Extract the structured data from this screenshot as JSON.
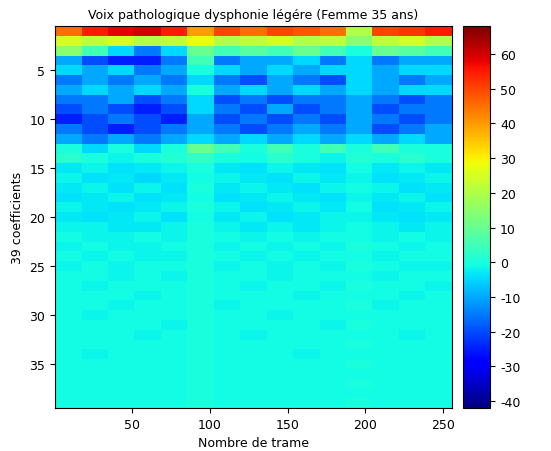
{
  "chart_data": {
    "type": "heatmap",
    "title": "Voix pathologique dysphonie légére (Femme 35 ans)",
    "x_label": "Nombre de trame",
    "y_label": "39 coefficients",
    "color": "jet",
    "x_edges": [
      0.5,
      17.5,
      34.5,
      51.5,
      68.5,
      85.5,
      102.5,
      119.5,
      136.5,
      153.5,
      170.5,
      187.5,
      204.5,
      221.5,
      238.5,
      255.5
    ],
    "y_edges": [
      0.5,
      1.5,
      2.5,
      3.5,
      4.5,
      5.5,
      6.5,
      7.5,
      8.5,
      9.5,
      10.5,
      11.5,
      12.5,
      13.5,
      14.5,
      15.5,
      16.5,
      17.5,
      18.5,
      19.5,
      20.5,
      21.5,
      22.5,
      23.5,
      24.5,
      25.5,
      26.5,
      27.5,
      28.5,
      29.5,
      30.5,
      31.5,
      32.5,
      33.5,
      34.5,
      35.5,
      36.5,
      37.5,
      38.5,
      39.5
    ],
    "xlim": [
      0.5,
      255.5
    ],
    "ylim": [
      39.5,
      0.5
    ],
    "xticks": [
      50,
      100,
      150,
      200,
      250
    ],
    "yticks": [
      5,
      10,
      15,
      20,
      25,
      30,
      35
    ],
    "colorbar_range": [
      -42,
      68
    ],
    "colorbar_ticks": [
      -40,
      -30,
      -20,
      -10,
      0,
      10,
      20,
      30,
      40,
      50,
      60
    ],
    "cells": [
      [
        45,
        55,
        58,
        60,
        55,
        40,
        50,
        45,
        50,
        48,
        45,
        20,
        50,
        52,
        55
      ],
      [
        25,
        22,
        25,
        20,
        22,
        28,
        20,
        22,
        25,
        20,
        22,
        15,
        22,
        25,
        20
      ],
      [
        15,
        5,
        -5,
        -15,
        -5,
        10,
        5,
        8,
        5,
        10,
        5,
        0,
        10,
        8,
        5
      ],
      [
        -10,
        -20,
        -25,
        -25,
        -15,
        5,
        -15,
        -10,
        -10,
        -5,
        -15,
        -5,
        -15,
        -10,
        -10
      ],
      [
        -5,
        -10,
        -5,
        -15,
        -10,
        0,
        -5,
        -10,
        -5,
        -10,
        -5,
        -5,
        -10,
        -5,
        -5
      ],
      [
        -15,
        -10,
        -15,
        -10,
        -15,
        -5,
        -15,
        -20,
        -10,
        -15,
        -20,
        -5,
        -10,
        -15,
        -10
      ],
      [
        -10,
        -5,
        -10,
        -5,
        -10,
        0,
        -10,
        -5,
        -10,
        -5,
        -10,
        -5,
        -10,
        -5,
        -5
      ],
      [
        -15,
        -15,
        -10,
        -20,
        -15,
        -5,
        -20,
        -15,
        -20,
        -15,
        -15,
        -10,
        -15,
        -20,
        -15
      ],
      [
        -20,
        -15,
        -20,
        -25,
        -20,
        -5,
        -15,
        -20,
        -10,
        -20,
        -15,
        -10,
        -20,
        -15,
        -15
      ],
      [
        -25,
        -20,
        -15,
        -20,
        -25,
        -10,
        -20,
        -15,
        -20,
        -15,
        -20,
        -10,
        -15,
        -20,
        -15
      ],
      [
        -15,
        -20,
        -25,
        -20,
        -15,
        -10,
        -15,
        -20,
        -15,
        -10,
        -15,
        -10,
        -20,
        -15,
        -10
      ],
      [
        -10,
        -15,
        -10,
        -15,
        -10,
        -5,
        -10,
        -5,
        -10,
        -5,
        -10,
        -5,
        -10,
        -5,
        -10
      ],
      [
        0,
        -5,
        0,
        -5,
        0,
        10,
        5,
        0,
        5,
        0,
        5,
        0,
        5,
        0,
        0
      ],
      [
        2,
        0,
        -2,
        0,
        1,
        3,
        0,
        -1,
        2,
        0,
        -2,
        1,
        0,
        2,
        0
      ],
      [
        -3,
        -2,
        -4,
        -3,
        -2,
        0,
        -3,
        -4,
        -2,
        -3,
        -4,
        -1,
        -3,
        -2,
        -3
      ],
      [
        -2,
        -4,
        -3,
        -5,
        -3,
        -1,
        -2,
        -3,
        -4,
        -2,
        -3,
        -2,
        -4,
        -3,
        -2
      ],
      [
        -3,
        -2,
        -4,
        -2,
        -4,
        0,
        -3,
        -2,
        -3,
        -4,
        -2,
        -1,
        -2,
        -4,
        -3
      ],
      [
        -4,
        -3,
        -2,
        -4,
        -3,
        -1,
        -4,
        -3,
        -2,
        -3,
        -4,
        -2,
        -3,
        -2,
        -4
      ],
      [
        -2,
        -3,
        -4,
        -3,
        -2,
        0,
        -2,
        -4,
        -3,
        -2,
        -3,
        -1,
        -4,
        -3,
        -2
      ],
      [
        -3,
        -4,
        -3,
        -2,
        -4,
        -1,
        -3,
        -2,
        -4,
        -3,
        -2,
        -2,
        -3,
        -4,
        -3
      ],
      [
        -2,
        -2,
        -3,
        -3,
        -2,
        0,
        -2,
        -3,
        -2,
        -3,
        -2,
        -1,
        -2,
        -3,
        -2
      ],
      [
        -1,
        -2,
        -2,
        -1,
        -2,
        0,
        -1,
        -2,
        -1,
        -2,
        -1,
        -1,
        -2,
        -1,
        -2
      ],
      [
        -2,
        -1,
        -2,
        -2,
        -1,
        0,
        -2,
        -1,
        -2,
        -1,
        -2,
        0,
        -1,
        -2,
        -1
      ],
      [
        -1,
        -2,
        -1,
        -2,
        -2,
        0,
        -1,
        -2,
        -1,
        -2,
        -1,
        -1,
        -2,
        -1,
        -1
      ],
      [
        -2,
        -1,
        -2,
        -1,
        -1,
        0,
        -2,
        -1,
        -2,
        -1,
        -2,
        0,
        -1,
        -2,
        -2
      ],
      [
        -1,
        -1,
        -2,
        -1,
        -2,
        0,
        -1,
        -1,
        -2,
        -1,
        -1,
        -1,
        -2,
        -1,
        -1
      ],
      [
        -1,
        -2,
        -1,
        -1,
        -1,
        0,
        -1,
        -2,
        -1,
        -1,
        -2,
        0,
        -1,
        -1,
        -2
      ],
      [
        -1,
        -1,
        -1,
        -2,
        -1,
        0,
        -1,
        -1,
        -1,
        -2,
        -1,
        -1,
        -1,
        -2,
        -1
      ],
      [
        -1,
        -1,
        -2,
        -1,
        -1,
        0,
        -2,
        -1,
        -1,
        -1,
        -1,
        0,
        -2,
        -1,
        -1
      ],
      [
        -1,
        -2,
        -1,
        -1,
        -1,
        0,
        -1,
        -1,
        -2,
        -1,
        -1,
        -1,
        -1,
        -1,
        -1
      ],
      [
        -1,
        -1,
        -1,
        -1,
        -2,
        0,
        -1,
        -1,
        -1,
        -1,
        -2,
        0,
        -1,
        -1,
        -1
      ],
      [
        -1,
        -1,
        -1,
        -2,
        -1,
        0,
        -1,
        -2,
        -1,
        -1,
        -1,
        -1,
        -1,
        -2,
        -1
      ],
      [
        -1,
        -1,
        -1,
        -1,
        -1,
        0,
        -1,
        -1,
        -1,
        -1,
        -1,
        0,
        -1,
        -1,
        -1
      ],
      [
        -1,
        -2,
        -1,
        -1,
        -1,
        0,
        -1,
        -1,
        -1,
        -2,
        -1,
        -1,
        -1,
        -1,
        -1
      ],
      [
        -1,
        -1,
        -1,
        -1,
        -1,
        0,
        -1,
        -1,
        -1,
        -1,
        -1,
        0,
        -1,
        -1,
        -1
      ],
      [
        -1,
        -1,
        -1,
        -1,
        -1,
        0,
        -1,
        -1,
        -1,
        -1,
        -1,
        -1,
        -1,
        -1,
        -1
      ],
      [
        -1,
        -1,
        -1,
        -1,
        -1,
        0,
        -1,
        -1,
        -1,
        -1,
        -1,
        0,
        -1,
        -1,
        -1
      ],
      [
        -1,
        -1,
        -1,
        -1,
        -1,
        0,
        -1,
        -1,
        -1,
        -1,
        -1,
        -1,
        -1,
        -1,
        -1
      ],
      [
        -1,
        -1,
        -1,
        -1,
        -1,
        0,
        -1,
        -1,
        -1,
        -1,
        -1,
        0,
        -1,
        -1,
        -1
      ]
    ]
  }
}
